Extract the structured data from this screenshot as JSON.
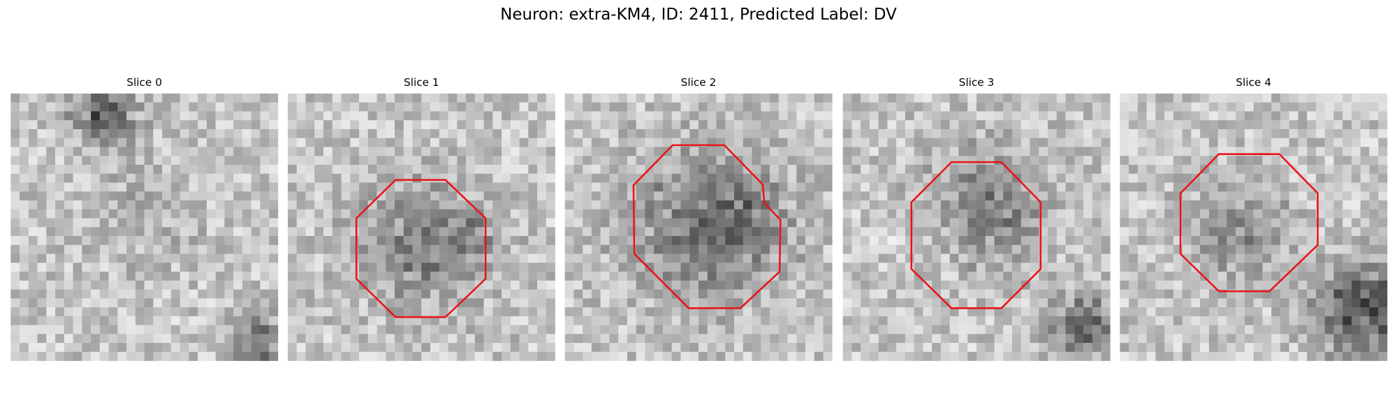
{
  "title": "Neuron: extra-KM4, ID: 2411, Predicted Label: DV",
  "panels": [
    {
      "title": "Slice 0"
    },
    {
      "title": "Slice 1"
    },
    {
      "title": "Slice 2"
    },
    {
      "title": "Slice 3"
    },
    {
      "title": "Slice 4"
    }
  ]
}
